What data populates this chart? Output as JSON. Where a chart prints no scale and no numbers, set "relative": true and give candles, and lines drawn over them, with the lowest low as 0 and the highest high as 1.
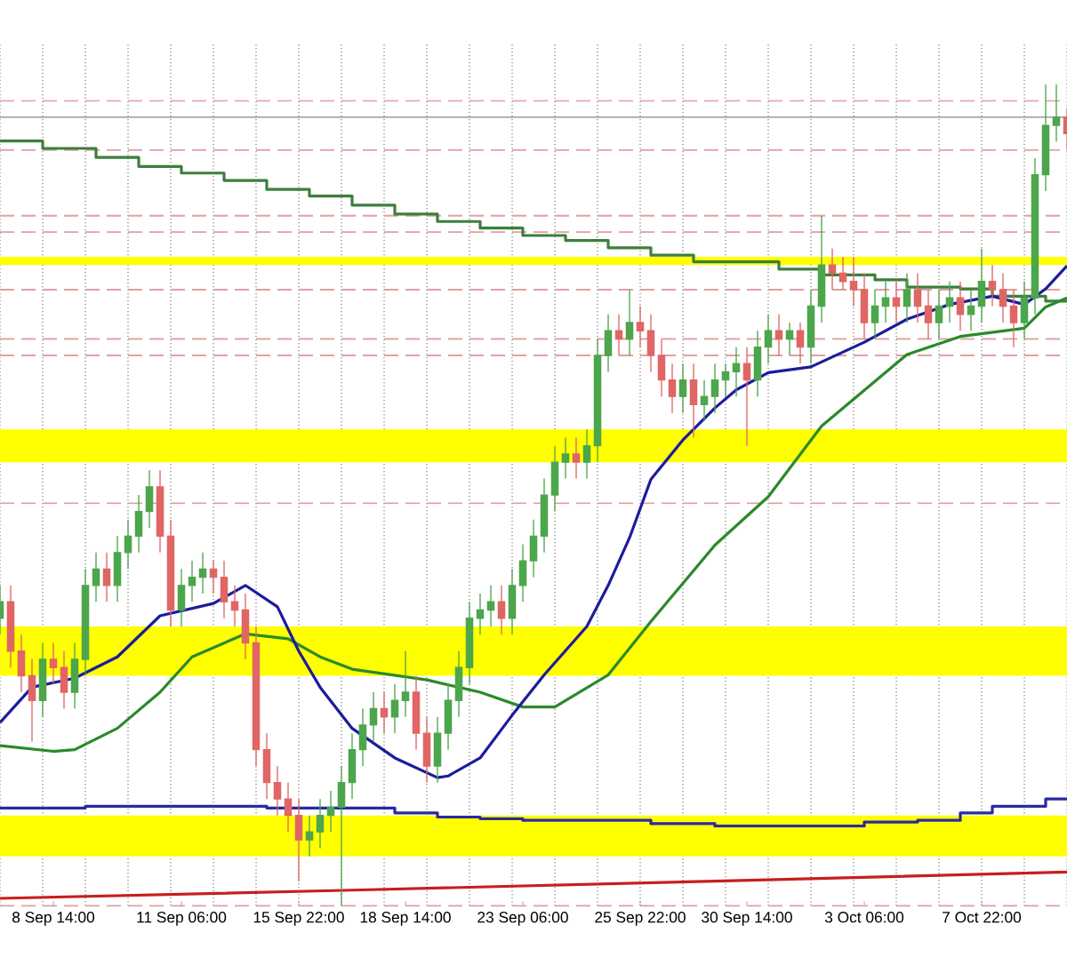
{
  "chart_data": {
    "type": "candlestick",
    "relative": true,
    "grid": "x",
    "tick_labels": "x",
    "categories": [
      null,
      null,
      null,
      null,
      null,
      "8 Sep 14:00",
      null,
      null,
      null,
      null,
      null,
      null,
      null,
      null,
      null,
      null,
      null,
      "11 Sep 06:00",
      null,
      null,
      null,
      null,
      null,
      null,
      null,
      null,
      null,
      null,
      "15 Sep 22:00",
      null,
      null,
      null,
      null,
      null,
      null,
      null,
      null,
      null,
      "18 Sep 14:00",
      null,
      null,
      null,
      null,
      null,
      null,
      null,
      null,
      null,
      null,
      "23 Sep 06:00",
      null,
      null,
      null,
      null,
      null,
      null,
      null,
      null,
      null,
      null,
      "25 Sep 22:00",
      null,
      null,
      null,
      null,
      null,
      null,
      null,
      null,
      null,
      "30 Sep 14:00",
      null,
      null,
      null,
      null,
      null,
      null,
      null,
      null,
      null,
      null,
      "3 Oct 06:00",
      null,
      null,
      null,
      null,
      null,
      null,
      null,
      null,
      null,
      null,
      "7 Oct 22:00",
      null,
      null,
      null,
      null,
      null,
      null,
      null,
      null
    ],
    "bands": [
      {
        "axis": "y",
        "from": 0.54,
        "to": 0.58,
        "color": "#ffff00"
      },
      {
        "axis": "y",
        "from": 0.28,
        "to": 0.34,
        "color": "#ffff00"
      },
      {
        "axis": "y",
        "from": 0.06,
        "to": 0.11,
        "color": "#ffff00"
      },
      {
        "axis": "y",
        "from": 0.78,
        "to": 0.79,
        "color": "#ffff00"
      }
    ],
    "ref_lines": [
      {
        "axis": "y",
        "value": 0.98,
        "color": "#e0a0a0",
        "line_style": "dashed"
      },
      {
        "axis": "y",
        "value": 0.96,
        "color": "#a8a8a8",
        "line_style": "solid"
      },
      {
        "axis": "y",
        "value": 0.92,
        "color": "#e0a0a0",
        "line_style": "dashed"
      },
      {
        "axis": "y",
        "value": 0.84,
        "color": "#e0a0a0",
        "line_style": "dashed"
      },
      {
        "axis": "y",
        "value": 0.82,
        "color": "#e0a0a0",
        "line_style": "dashed"
      },
      {
        "axis": "y",
        "value": 0.75,
        "color": "#e0a0a0",
        "line_style": "dashed"
      },
      {
        "axis": "y",
        "value": 0.69,
        "color": "#e0a0a0",
        "line_style": "dashed"
      },
      {
        "axis": "y",
        "value": 0.67,
        "color": "#e0a0a0",
        "line_style": "dashed"
      },
      {
        "axis": "y",
        "value": 0.49,
        "color": "#e0a0a0",
        "line_style": "dashed"
      },
      {
        "axis": "y",
        "value": 0.0,
        "color": "#e0a0a0",
        "line_style": "dashed"
      }
    ],
    "series": [
      {
        "type": "step",
        "color": "#3c7f3c",
        "values": [
          0.931,
          null,
          null,
          null,
          0.922,
          null,
          null,
          null,
          null,
          0.911,
          null,
          null,
          null,
          0.9,
          null,
          null,
          null,
          0.892,
          null,
          null,
          null,
          0.883,
          null,
          null,
          null,
          0.872,
          null,
          null,
          null,
          0.864,
          null,
          null,
          null,
          0.853,
          null,
          null,
          null,
          0.842,
          null,
          null,
          null,
          0.833,
          null,
          null,
          null,
          0.825,
          null,
          null,
          null,
          0.816,
          null,
          null,
          null,
          0.81,
          null,
          null,
          null,
          0.801,
          null,
          null,
          null,
          0.792,
          null,
          null,
          null,
          0.784,
          null,
          null,
          null,
          null,
          null,
          null,
          null,
          0.775,
          null,
          null,
          null,
          0.768,
          null,
          null,
          null,
          null,
          0.762,
          null,
          null,
          0.753,
          null,
          null,
          null,
          null,
          0.751,
          null,
          null,
          0.742,
          null,
          null,
          null,
          null,
          0.736,
          null,
          0.736
        ]
      },
      {
        "type": "step",
        "color": "#2a2aa0",
        "values": [
          0.119,
          null,
          null,
          null,
          null,
          null,
          null,
          null,
          0.121,
          null,
          null,
          null,
          null,
          null,
          null,
          null,
          null,
          null,
          null,
          null,
          null,
          null,
          null,
          null,
          null,
          0.119,
          null,
          null,
          null,
          null,
          null,
          null,
          null,
          null,
          null,
          null,
          null,
          0.113,
          null,
          null,
          null,
          0.108,
          null,
          null,
          null,
          0.106,
          null,
          null,
          null,
          0.104,
          null,
          null,
          null,
          null,
          null,
          null,
          null,
          null,
          null,
          null,
          null,
          0.1,
          null,
          null,
          null,
          null,
          null,
          0.097,
          null,
          null,
          null,
          null,
          null,
          null,
          null,
          null,
          null,
          null,
          null,
          null,
          null,
          0.102,
          null,
          null,
          null,
          null,
          0.104,
          null,
          null,
          null,
          0.113,
          null,
          null,
          0.121,
          null,
          null,
          null,
          null,
          0.13,
          null,
          0.13
        ]
      },
      {
        "type": "line",
        "color": "#c81e1e",
        "values": [
          0.009,
          null,
          null,
          null,
          null,
          null,
          null,
          null,
          null,
          null,
          null,
          null,
          null,
          null,
          null,
          null,
          null,
          null,
          null,
          null,
          null,
          null,
          null,
          null,
          null,
          null,
          null,
          null,
          null,
          null,
          null,
          null,
          null,
          0.019,
          null,
          null,
          null,
          null,
          null,
          null,
          null,
          null,
          null,
          null,
          null,
          null,
          null,
          null,
          null,
          null,
          null,
          null,
          null,
          null,
          null,
          null,
          null,
          null,
          null,
          null,
          null,
          null,
          null,
          null,
          null,
          null,
          null,
          0.03,
          null,
          null,
          null,
          null,
          null,
          null,
          null,
          null,
          null,
          null,
          null,
          null,
          null,
          null,
          null,
          null,
          null,
          null,
          null,
          null,
          null,
          null,
          null,
          null,
          null,
          null,
          null,
          null,
          null,
          null,
          null,
          null,
          0.041
        ]
      },
      {
        "type": "line",
        "color": "#2a8a2a",
        "values": [
          0.195,
          null,
          null,
          null,
          null,
          0.188,
          null,
          0.19,
          null,
          null,
          null,
          0.216,
          null,
          null,
          null,
          0.26,
          null,
          null,
          0.303,
          null,
          null,
          null,
          null,
          0.331,
          null,
          null,
          null,
          0.325,
          null,
          null,
          0.303,
          null,
          null,
          0.288,
          null,
          null,
          null,
          null,
          null,
          null,
          0.275,
          null,
          null,
          null,
          null,
          0.26,
          null,
          null,
          null,
          0.242,
          null,
          null,
          0.242,
          null,
          null,
          null,
          null,
          0.281,
          null,
          null,
          null,
          0.346,
          null,
          null,
          null,
          null,
          null,
          0.439,
          null,
          null,
          null,
          null,
          0.498,
          null,
          null,
          null,
          null,
          0.584,
          null,
          null,
          null,
          null,
          null,
          null,
          null,
          0.671,
          null,
          null,
          null,
          null,
          0.693,
          null,
          null,
          null,
          null,
          null,
          0.703,
          null,
          0.729,
          null,
          0.74
        ]
      },
      {
        "type": "line",
        "color": "#1c1c9c",
        "values": [
          0.223,
          null,
          null,
          0.266,
          null,
          null,
          null,
          0.277,
          null,
          null,
          null,
          0.303,
          null,
          null,
          null,
          0.353,
          null,
          null,
          null,
          null,
          0.368,
          null,
          null,
          0.39,
          null,
          null,
          0.364,
          null,
          0.31,
          null,
          0.266,
          null,
          null,
          0.216,
          null,
          null,
          null,
          0.18,
          null,
          null,
          null,
          0.156,
          0.158,
          null,
          null,
          0.18,
          null,
          null,
          0.232,
          null,
          null,
          0.281,
          null,
          null,
          null,
          0.34,
          null,
          0.39,
          null,
          0.448,
          null,
          0.519,
          null,
          null,
          0.567,
          null,
          null,
          0.606,
          null,
          0.628,
          null,
          null,
          0.649,
          null,
          null,
          null,
          0.656,
          null,
          null,
          null,
          null,
          0.686,
          null,
          null,
          null,
          0.714,
          null,
          null,
          null,
          0.732,
          null,
          null,
          null,
          0.742,
          null,
          null,
          0.732,
          null,
          0.751,
          null,
          0.779
        ]
      }
    ],
    "colors": [
      "#4ca64c",
      "#e06666",
      "#e06666",
      "#e06666",
      "#4ca64c",
      "#e06666",
      "#e06666",
      "#4ca64c",
      "#4ca64c",
      "#4ca64c",
      "#e06666",
      "#4ca64c",
      "#4ca64c",
      "#4ca64c",
      "#4ca64c",
      "#e06666",
      "#e06666",
      "#4ca64c",
      "#4ca64c",
      "#4ca64c",
      "#e06666",
      "#e06666",
      "#e06666",
      "#e06666",
      "#e06666",
      "#e06666",
      "#e06666",
      "#e06666",
      "#e06666",
      "#4ca64c",
      "#4ca64c",
      "#4ca64c",
      "#4ca64c",
      "#4ca64c",
      "#4ca64c",
      "#4ca64c",
      "#e06666",
      "#4ca64c",
      "#4ca64c",
      "#e06666",
      "#e06666",
      "#4ca64c",
      "#4ca64c",
      "#4ca64c",
      "#4ca64c",
      "#4ca64c",
      "#4ca64c",
      "#e06666",
      "#4ca64c",
      "#4ca64c",
      "#4ca64c",
      "#4ca64c",
      "#4ca64c",
      "#4ca64c",
      "#e06666",
      "#4ca64c",
      "#4ca64c",
      "#4ca64c",
      "#e06666",
      "#4ca64c",
      "#e06666",
      "#e06666",
      "#e06666",
      "#e06666",
      "#4ca64c",
      "#e06666",
      "#4ca64c",
      "#4ca64c",
      "#4ca64c",
      "#4ca64c",
      "#e06666",
      "#4ca64c",
      "#4ca64c",
      "#e06666",
      "#4ca64c",
      "#e06666",
      "#4ca64c",
      "#4ca64c",
      "#e06666",
      "#e06666",
      "#e06666",
      "#e06666",
      "#4ca64c",
      "#4ca64c",
      "#e06666",
      "#4ca64c",
      "#e06666",
      "#e06666",
      "#4ca64c",
      "#4ca64c",
      "#e06666",
      "#4ca64c",
      "#4ca64c",
      "#e06666",
      "#e06666",
      "#e06666",
      "#4ca64c",
      "#4ca64c",
      "#4ca64c",
      "#4ca64c",
      "#e06666"
    ],
    "ohlc": [
      [
        0.35,
        0.39,
        0.33,
        0.37
      ],
      [
        0.37,
        0.39,
        0.29,
        0.31
      ],
      [
        0.31,
        0.33,
        0.26,
        0.28
      ],
      [
        0.28,
        0.3,
        0.2,
        0.25
      ],
      [
        0.25,
        0.32,
        0.23,
        0.3
      ],
      [
        0.3,
        0.32,
        0.27,
        0.29
      ],
      [
        0.29,
        0.31,
        0.24,
        0.26
      ],
      [
        0.26,
        0.32,
        0.24,
        0.3
      ],
      [
        0.3,
        0.41,
        0.28,
        0.39
      ],
      [
        0.39,
        0.43,
        0.37,
        0.41
      ],
      [
        0.41,
        0.43,
        0.37,
        0.39
      ],
      [
        0.39,
        0.45,
        0.37,
        0.43
      ],
      [
        0.43,
        0.47,
        0.41,
        0.45
      ],
      [
        0.45,
        0.5,
        0.43,
        0.48
      ],
      [
        0.48,
        0.53,
        0.46,
        0.51
      ],
      [
        0.51,
        0.53,
        0.43,
        0.45
      ],
      [
        0.45,
        0.47,
        0.34,
        0.36
      ],
      [
        0.36,
        0.41,
        0.34,
        0.39
      ],
      [
        0.39,
        0.42,
        0.37,
        0.4
      ],
      [
        0.4,
        0.43,
        0.38,
        0.41
      ],
      [
        0.41,
        0.42,
        0.38,
        0.4
      ],
      [
        0.4,
        0.42,
        0.35,
        0.37
      ],
      [
        0.37,
        0.39,
        0.34,
        0.36
      ],
      [
        0.36,
        0.38,
        0.3,
        0.32
      ],
      [
        0.32,
        0.34,
        0.17,
        0.19
      ],
      [
        0.19,
        0.21,
        0.13,
        0.15
      ],
      [
        0.15,
        0.17,
        0.11,
        0.13
      ],
      [
        0.13,
        0.15,
        0.09,
        0.11
      ],
      [
        0.11,
        0.13,
        0.03,
        0.08
      ],
      [
        0.08,
        0.11,
        0.06,
        0.09
      ],
      [
        0.09,
        0.13,
        0.07,
        0.11
      ],
      [
        0.11,
        0.14,
        0.09,
        0.12
      ],
      [
        0.12,
        0.17,
        0.0,
        0.15
      ],
      [
        0.15,
        0.21,
        0.13,
        0.19
      ],
      [
        0.19,
        0.24,
        0.17,
        0.22
      ],
      [
        0.22,
        0.26,
        0.2,
        0.24
      ],
      [
        0.24,
        0.26,
        0.21,
        0.23
      ],
      [
        0.23,
        0.27,
        0.21,
        0.25
      ],
      [
        0.25,
        0.31,
        0.23,
        0.26
      ],
      [
        0.26,
        0.28,
        0.19,
        0.21
      ],
      [
        0.21,
        0.23,
        0.15,
        0.17
      ],
      [
        0.17,
        0.23,
        0.15,
        0.21
      ],
      [
        0.21,
        0.27,
        0.19,
        0.25
      ],
      [
        0.25,
        0.31,
        0.23,
        0.29
      ],
      [
        0.29,
        0.37,
        0.27,
        0.35
      ],
      [
        0.35,
        0.38,
        0.33,
        0.36
      ],
      [
        0.36,
        0.39,
        0.34,
        0.37
      ],
      [
        0.37,
        0.39,
        0.33,
        0.35
      ],
      [
        0.35,
        0.41,
        0.33,
        0.39
      ],
      [
        0.39,
        0.44,
        0.37,
        0.42
      ],
      [
        0.42,
        0.47,
        0.4,
        0.45
      ],
      [
        0.45,
        0.52,
        0.43,
        0.5
      ],
      [
        0.5,
        0.56,
        0.48,
        0.54
      ],
      [
        0.54,
        0.57,
        0.52,
        0.55
      ],
      [
        0.55,
        0.57,
        0.52,
        0.54
      ],
      [
        0.54,
        0.58,
        0.52,
        0.56
      ],
      [
        0.56,
        0.69,
        0.54,
        0.67
      ],
      [
        0.67,
        0.72,
        0.65,
        0.7
      ],
      [
        0.7,
        0.72,
        0.67,
        0.69
      ],
      [
        0.69,
        0.75,
        0.67,
        0.71
      ],
      [
        0.71,
        0.73,
        0.68,
        0.7
      ],
      [
        0.7,
        0.72,
        0.65,
        0.67
      ],
      [
        0.67,
        0.69,
        0.62,
        0.64
      ],
      [
        0.64,
        0.66,
        0.6,
        0.62
      ],
      [
        0.62,
        0.66,
        0.6,
        0.64
      ],
      [
        0.64,
        0.66,
        0.57,
        0.61
      ],
      [
        0.61,
        0.64,
        0.59,
        0.62
      ],
      [
        0.62,
        0.66,
        0.6,
        0.64
      ],
      [
        0.64,
        0.66,
        0.62,
        0.65
      ],
      [
        0.65,
        0.68,
        0.62,
        0.66
      ],
      [
        0.66,
        0.68,
        0.56,
        0.64
      ],
      [
        0.64,
        0.7,
        0.62,
        0.68
      ],
      [
        0.68,
        0.72,
        0.66,
        0.7
      ],
      [
        0.7,
        0.72,
        0.67,
        0.69
      ],
      [
        0.69,
        0.71,
        0.67,
        0.7
      ],
      [
        0.7,
        0.71,
        0.66,
        0.68
      ],
      [
        0.68,
        0.75,
        0.66,
        0.73
      ],
      [
        0.73,
        0.84,
        0.71,
        0.78
      ],
      [
        0.78,
        0.8,
        0.75,
        0.77
      ],
      [
        0.77,
        0.79,
        0.75,
        0.76
      ],
      [
        0.76,
        0.79,
        0.73,
        0.75
      ],
      [
        0.75,
        0.77,
        0.69,
        0.71
      ],
      [
        0.71,
        0.75,
        0.69,
        0.73
      ],
      [
        0.73,
        0.76,
        0.71,
        0.74
      ],
      [
        0.74,
        0.76,
        0.71,
        0.73
      ],
      [
        0.73,
        0.77,
        0.71,
        0.75
      ],
      [
        0.75,
        0.77,
        0.71,
        0.73
      ],
      [
        0.73,
        0.75,
        0.69,
        0.71
      ],
      [
        0.71,
        0.75,
        0.69,
        0.73
      ],
      [
        0.73,
        0.76,
        0.71,
        0.74
      ],
      [
        0.74,
        0.76,
        0.7,
        0.72
      ],
      [
        0.72,
        0.75,
        0.7,
        0.73
      ],
      [
        0.73,
        0.8,
        0.71,
        0.76
      ],
      [
        0.76,
        0.78,
        0.73,
        0.75
      ],
      [
        0.75,
        0.77,
        0.71,
        0.73
      ],
      [
        0.73,
        0.75,
        0.68,
        0.71
      ],
      [
        0.71,
        0.76,
        0.69,
        0.74
      ],
      [
        0.74,
        0.91,
        0.72,
        0.89
      ],
      [
        0.89,
        1.0,
        0.87,
        0.95
      ],
      [
        0.95,
        1.0,
        0.93,
        0.96
      ],
      [
        0.96,
        0.97,
        0.92,
        0.94
      ]
    ]
  }
}
